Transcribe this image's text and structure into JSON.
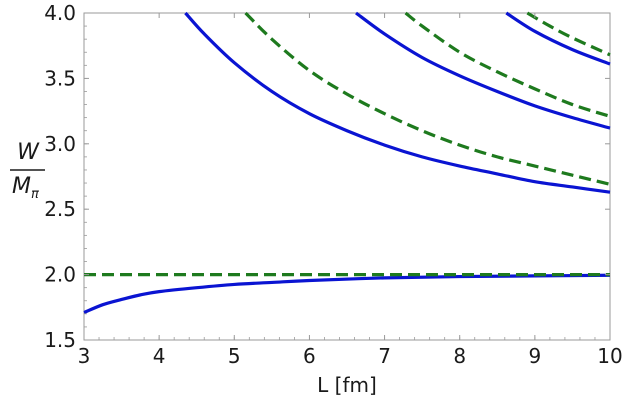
{
  "chart_data": {
    "type": "line",
    "xlabel": "L [fm]",
    "ylabel": {
      "numerator": "W",
      "denominator_main": "M",
      "denominator_sub": "π"
    },
    "xlim": [
      3,
      10
    ],
    "ylim": [
      1.5,
      4.0
    ],
    "xticks": [
      "3",
      "4",
      "5",
      "6",
      "7",
      "8",
      "9",
      "10"
    ],
    "yticks": [
      "1.5",
      "2.0",
      "2.5",
      "3.0",
      "3.5",
      "4.0"
    ],
    "grid": false,
    "colors": {
      "solid": "#0a14d2",
      "dashed": "#1e7a1e",
      "frame": "#9a9a9a"
    },
    "series": [
      {
        "style": "solid",
        "x": [
          3.0,
          3.25,
          3.5,
          3.75,
          4.0,
          4.5,
          5.0,
          5.5,
          6.0,
          7.0,
          8.0,
          9.0,
          10.0
        ],
        "y": [
          1.71,
          1.77,
          1.81,
          1.845,
          1.87,
          1.9,
          1.925,
          1.94,
          1.955,
          1.975,
          1.985,
          1.99,
          1.995
        ]
      },
      {
        "style": "dashed",
        "x": [
          3.0,
          10.0
        ],
        "y": [
          2.0,
          2.0
        ]
      },
      {
        "style": "solid",
        "x": [
          4.35,
          4.6,
          5.0,
          5.5,
          6.0,
          6.5,
          7.0,
          7.5,
          8.0,
          8.5,
          9.0,
          9.5,
          10.0
        ],
        "y": [
          4.0,
          3.84,
          3.62,
          3.4,
          3.23,
          3.1,
          2.99,
          2.9,
          2.83,
          2.77,
          2.71,
          2.67,
          2.63
        ]
      },
      {
        "style": "dashed",
        "x": [
          5.15,
          5.5,
          6.0,
          6.5,
          7.0,
          7.5,
          8.0,
          8.5,
          9.0,
          9.5,
          10.0
        ],
        "y": [
          4.0,
          3.8,
          3.56,
          3.38,
          3.23,
          3.1,
          2.99,
          2.9,
          2.83,
          2.76,
          2.69
        ]
      },
      {
        "style": "solid",
        "x": [
          6.62,
          7.0,
          7.5,
          8.0,
          8.5,
          9.0,
          9.5,
          10.0
        ],
        "y": [
          4.0,
          3.84,
          3.66,
          3.52,
          3.4,
          3.29,
          3.2,
          3.12
        ]
      },
      {
        "style": "dashed",
        "x": [
          7.28,
          7.5,
          8.0,
          8.5,
          9.0,
          9.5,
          10.0
        ],
        "y": [
          4.0,
          3.9,
          3.7,
          3.55,
          3.42,
          3.3,
          3.21
        ]
      },
      {
        "style": "solid",
        "x": [
          8.62,
          9.0,
          9.5,
          10.0
        ],
        "y": [
          4.0,
          3.86,
          3.72,
          3.61
        ]
      },
      {
        "style": "dashed",
        "x": [
          8.9,
          9.2,
          9.5,
          10.0
        ],
        "y": [
          4.0,
          3.9,
          3.81,
          3.68
        ]
      }
    ]
  }
}
